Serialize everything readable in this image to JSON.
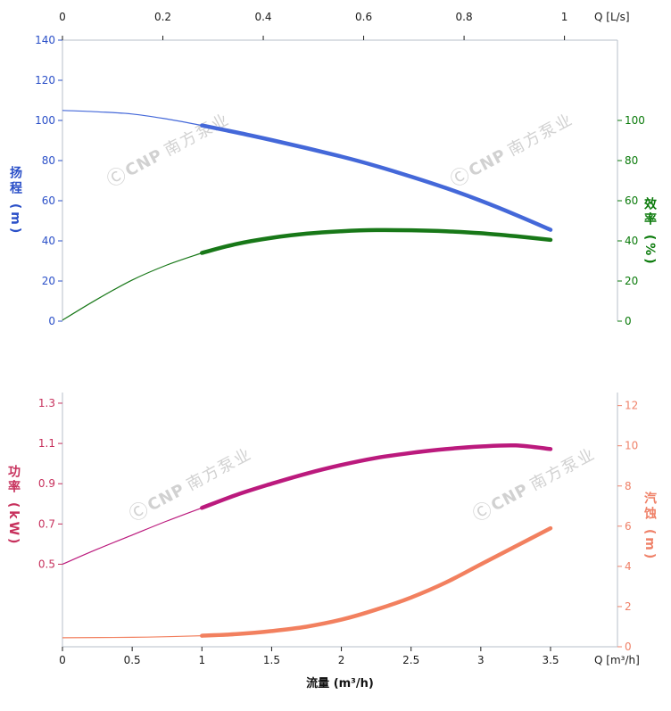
{
  "watermark": {
    "logo": "Ⓒ",
    "brand": "CNP",
    "name": "南方泵业"
  },
  "chart_data": [
    {
      "id": "top-plot",
      "type": "line",
      "x_axis": {
        "unit": "m³/h",
        "min": 0,
        "max": 3.98
      },
      "top_axis": {
        "corner_label": "Q [L/s]",
        "ticks": [
          0,
          0.2,
          0.4,
          0.6,
          0.8,
          1
        ],
        "tick_labels": [
          "0",
          "0.2",
          "0.4",
          "0.6",
          "0.8",
          "1"
        ],
        "m3h_per_lps": 3.6,
        "color": "#1a1a1a"
      },
      "left_axis": {
        "title": "扬程 (m)",
        "min": 0,
        "max": 140,
        "ticks": [
          0,
          20,
          40,
          60,
          80,
          100,
          120,
          140
        ],
        "color": "#2b50c8"
      },
      "right_axis": {
        "title": "效率 (%)",
        "min": 0,
        "max": 140,
        "ticks": [
          0,
          20,
          40,
          60,
          80,
          100
        ],
        "color": "#0a7a0a"
      },
      "series": [
        {
          "name": "head",
          "axis": "left",
          "color": "#4468d9",
          "split_x": 1,
          "points": [
            [
              0,
              105
            ],
            [
              0.25,
              104.3
            ],
            [
              0.5,
              103.2
            ],
            [
              0.75,
              100.7
            ],
            [
              1,
              97.5
            ],
            [
              1.25,
              94
            ],
            [
              1.5,
              90.2
            ],
            [
              1.75,
              86.2
            ],
            [
              2,
              82
            ],
            [
              2.25,
              77.3
            ],
            [
              2.5,
              72
            ],
            [
              2.75,
              66.3
            ],
            [
              3,
              60
            ],
            [
              3.25,
              53
            ],
            [
              3.5,
              45.5
            ]
          ]
        },
        {
          "name": "efficiency",
          "axis": "right",
          "color": "#187818",
          "split_x": 1,
          "points": [
            [
              0,
              0.5
            ],
            [
              0.25,
              11
            ],
            [
              0.5,
              20.5
            ],
            [
              0.75,
              28
            ],
            [
              1,
              34
            ],
            [
              1.25,
              38.5
            ],
            [
              1.5,
              41.5
            ],
            [
              1.75,
              43.6
            ],
            [
              2,
              44.8
            ],
            [
              2.25,
              45.4
            ],
            [
              2.5,
              45.3
            ],
            [
              2.75,
              44.8
            ],
            [
              3,
              43.8
            ],
            [
              3.25,
              42.3
            ],
            [
              3.5,
              40.5
            ]
          ]
        }
      ]
    },
    {
      "id": "bottom-plot",
      "type": "line",
      "x_axis": {
        "unit": "m³/h",
        "min": 0,
        "max": 3.98
      },
      "bottom_axis": {
        "corner_label": "Q [m³/h]",
        "xlabel": "流量 (m³/h)",
        "ticks": [
          0,
          0.5,
          1,
          1.5,
          2,
          2.5,
          3,
          3.5
        ],
        "color": "#1a1a1a"
      },
      "left_axis": {
        "title": "功率 (kW)",
        "min": 0.09,
        "max": 1.353,
        "ticks": [
          0.5,
          0.7,
          0.9,
          1.1,
          1.3
        ],
        "color": "#c7305c"
      },
      "right_axis": {
        "title": "汽蚀 (m)",
        "min": 0,
        "max": 12.65,
        "ticks": [
          0,
          2,
          4,
          6,
          8,
          10,
          12
        ],
        "color": "#ef8168"
      },
      "series": [
        {
          "name": "power",
          "axis": "left",
          "color": "#bb1a7d",
          "split_x": 1,
          "points": [
            [
              0,
              0.5
            ],
            [
              0.25,
              0.575
            ],
            [
              0.5,
              0.645
            ],
            [
              0.75,
              0.715
            ],
            [
              1,
              0.78
            ],
            [
              1.25,
              0.845
            ],
            [
              1.5,
              0.9
            ],
            [
              1.75,
              0.95
            ],
            [
              2,
              0.993
            ],
            [
              2.25,
              1.028
            ],
            [
              2.5,
              1.053
            ],
            [
              2.75,
              1.072
            ],
            [
              3,
              1.085
            ],
            [
              3.25,
              1.09
            ],
            [
              3.5,
              1.072
            ]
          ]
        },
        {
          "name": "npsh",
          "axis": "right",
          "color": "#f2805f",
          "split_x": 1,
          "points": [
            [
              0,
              0.45
            ],
            [
              0.5,
              0.47
            ],
            [
              0.75,
              0.5
            ],
            [
              1,
              0.55
            ],
            [
              1.25,
              0.63
            ],
            [
              1.5,
              0.78
            ],
            [
              1.75,
              1.0
            ],
            [
              2,
              1.35
            ],
            [
              2.25,
              1.85
            ],
            [
              2.5,
              2.45
            ],
            [
              2.75,
              3.2
            ],
            [
              3,
              4.1
            ],
            [
              3.25,
              5.0
            ],
            [
              3.5,
              5.9
            ]
          ]
        }
      ]
    }
  ]
}
